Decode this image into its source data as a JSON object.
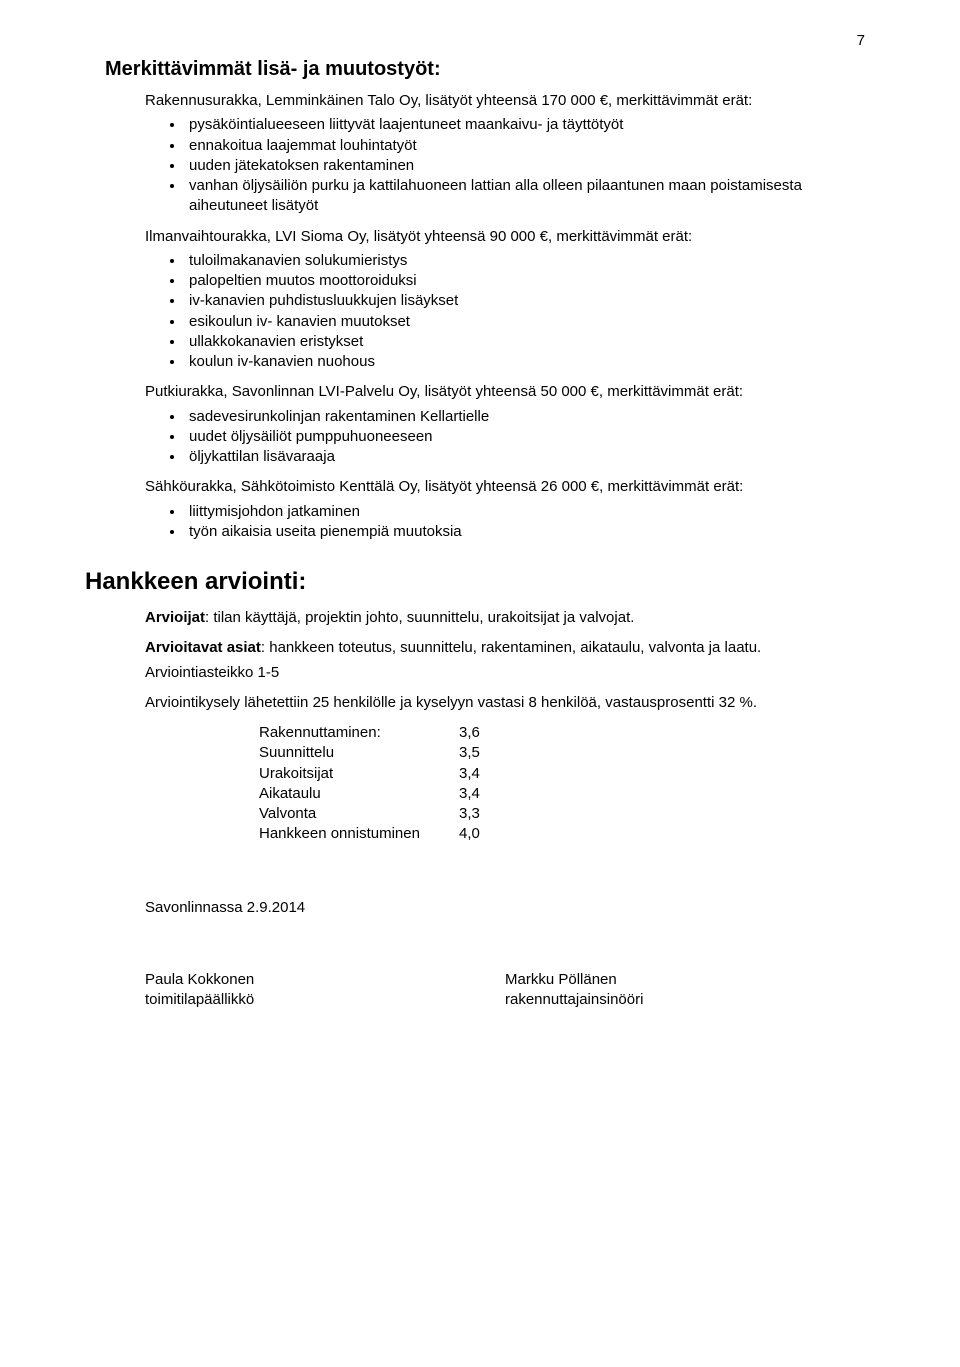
{
  "page_number": "7",
  "section1": {
    "title": "Merkittävimmät lisä- ja muutostyöt:",
    "group1": {
      "intro": "Rakennusurakka, Lemminkäinen Talo Oy, lisätyöt yhteensä 170 000 €, merkittävimmät erät:",
      "items": [
        "pysäköintialueeseen liittyvät laajentuneet maankaivu- ja täyttötyöt",
        "ennakoitua laajemmat louhintatyöt",
        "uuden jätekatoksen rakentaminen",
        "vanhan öljysäiliön purku ja kattilahuoneen lattian alla olleen pilaantunen maan poistamisesta aiheutuneet lisätyöt"
      ]
    },
    "group2": {
      "intro": "Ilmanvaihtourakka, LVI Sioma Oy, lisätyöt yhteensä 90 000 €, merkittävimmät erät:",
      "items": [
        "tuloilmakanavien solukumieristys",
        "palopeltien muutos moottoroiduksi",
        "iv-kanavien puhdistusluukkujen lisäykset",
        "esikoulun iv- kanavien muutokset",
        "ullakkokanavien eristykset",
        "koulun iv-kanavien nuohous"
      ]
    },
    "group3": {
      "intro": "Putkiurakka, Savonlinnan LVI-Palvelu Oy, lisätyöt yhteensä 50 000 €, merkittävimmät erät:",
      "items": [
        "sadevesirunkolinjan rakentaminen Kellartielle",
        "uudet öljysäiliöt pumppuhuoneeseen",
        "öljykattilan lisävaraaja"
      ]
    },
    "group4": {
      "intro": "Sähköurakka, Sähkötoimisto Kenttälä Oy, lisätyöt yhteensä 26 000 €, merkittävimmät erät:",
      "items": [
        "liittymisjohdon jatkaminen",
        "työn aikaisia useita pienempiä muutoksia"
      ]
    }
  },
  "section2": {
    "title": "Hankkeen arviointi:",
    "arvioijat_label": "Arvioijat",
    "arvioijat_text": ": tilan käyttäjä, projektin johto, suunnittelu, urakoitsijat ja valvojat.",
    "arvioitavat_label": "Arvioitavat asiat",
    "arvioitavat_text": ": hankkeen toteutus, suunnittelu, rakentaminen, aikataulu, valvonta ja laatu.",
    "asteikko": "Arviointiasteikko 1-5",
    "kysely": "Arviointikysely lähetettiin 25 henkilölle ja kyselyyn vastasi 8 henkilöä, vastausprosentti 32 %.",
    "ratings": [
      {
        "label": "Rakennuttaminen:",
        "value": "3,6"
      },
      {
        "label": "Suunnittelu",
        "value": "3,5"
      },
      {
        "label": "Urakoitsijat",
        "value": "3,4"
      },
      {
        "label": "Aikataulu",
        "value": "3,4"
      },
      {
        "label": "Valvonta",
        "value": "3,3"
      },
      {
        "label": "Hankkeen onnistuminen",
        "value": "4,0"
      }
    ]
  },
  "signoff": "Savonlinnassa 2.9.2014",
  "footer": {
    "left_name": "Paula Kokkonen",
    "left_title": "toimitilapäällikkö",
    "right_name": "Markku Pöllänen",
    "right_title": "rakennuttajainsinööri"
  }
}
